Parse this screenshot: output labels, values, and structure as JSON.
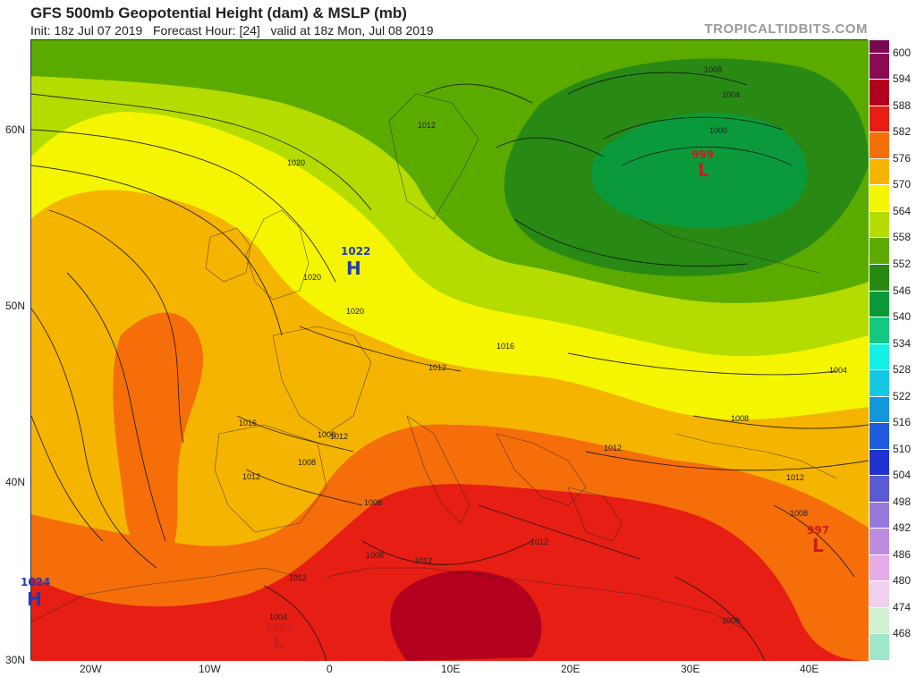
{
  "header": {
    "title": "GFS 500mb Geopotential Height (dam) & MSLP (mb)",
    "subtitle": "Init: 18z Jul 07 2019   Forecast Hour: [24]   valid at 18z Mon, Jul 08 2019",
    "brand": "TROPICALTIDBITS.COM"
  },
  "axes": {
    "lat_labels": [
      "60N",
      "50N",
      "40N",
      "30N"
    ],
    "lon_labels": [
      "20W",
      "10W",
      "0",
      "10E",
      "20E",
      "30E",
      "40E"
    ]
  },
  "legend": {
    "values": [
      "600",
      "594",
      "588",
      "582",
      "576",
      "570",
      "564",
      "558",
      "552",
      "546",
      "540",
      "534",
      "528",
      "522",
      "516",
      "510",
      "504",
      "498",
      "492",
      "486",
      "480",
      "474",
      "468"
    ],
    "colors": [
      "#8c0a54",
      "#b2001e",
      "#e61e14",
      "#f56e0a",
      "#f5b400",
      "#f5f500",
      "#b4dc00",
      "#5aaa00",
      "#288a14",
      "#0a9a3c",
      "#14c882",
      "#14f0e6",
      "#14c8e6",
      "#1496dc",
      "#1e5adc",
      "#1e32d2",
      "#5a5ad2",
      "#9678dc",
      "#be8cdc",
      "#e6aae6",
      "#f0d2f0",
      "#d2f0d2",
      "#a0e6c8"
    ]
  },
  "centers": [
    {
      "type": "H",
      "value": "1022",
      "color": "#1e3cb4"
    },
    {
      "type": "H",
      "value": "1024",
      "color": "#1e3cb4"
    },
    {
      "type": "L",
      "value": "999",
      "color": "#c81e1e"
    },
    {
      "type": "L",
      "value": "997",
      "color": "#c81e1e"
    },
    {
      "type": "L",
      "value": "1001",
      "color": "#c81e1e"
    }
  ],
  "isobar_labels": [
    "1008",
    "1004",
    "1000",
    "1012",
    "1020",
    "1020",
    "1020",
    "1016",
    "1012",
    "1012",
    "1016",
    "1012",
    "1008",
    "1012",
    "1012",
    "1008",
    "1012",
    "1012",
    "1008",
    "1012",
    "1008",
    "1004",
    "1008",
    "1004",
    "1008",
    "1008"
  ]
}
